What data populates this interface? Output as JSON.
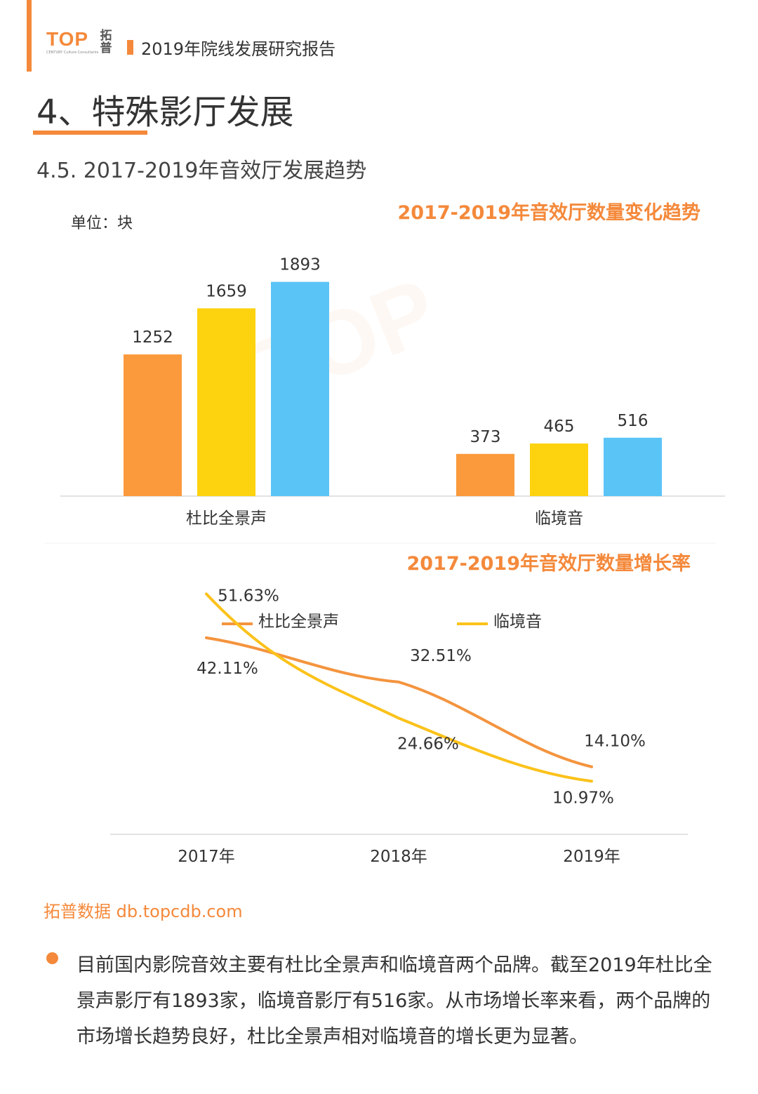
{
  "header": {
    "logo_text": "TOP",
    "logo_cn": "拓普",
    "logo_sub": "CENTURY Culture Consultants",
    "report_title": "2019年院线发展研究报告"
  },
  "page_title": "4、特殊影厅发展",
  "section_subtitle": "4.5. 2017-2019年音效厅发展趋势",
  "colors": {
    "accent": "#f4893b",
    "y2017": "#fb9a3c",
    "y2018": "#fdd20f",
    "y2019": "#5bc4f7",
    "line_dolby": "#f4943e",
    "line_cinity": "#fcc21b"
  },
  "chart_data": [
    {
      "type": "bar",
      "title": "2017-2019年音效厅数量变化趋势",
      "unit_label": "单位：块",
      "categories": [
        "杜比全景声",
        "临境音"
      ],
      "series": [
        {
          "values": [
            1252,
            373
          ]
        },
        {
          "values": [
            1659,
            465
          ]
        },
        {
          "values": [
            1893,
            516
          ]
        }
      ],
      "ylim": [
        0,
        2100
      ],
      "grid": false
    },
    {
      "type": "line",
      "title": "2017-2019年音效厅数量增长率",
      "x": [
        "2017年",
        "2018年",
        "2019年"
      ],
      "series": [
        {
          "name": "杜比全景声",
          "values": [
            42.11,
            32.51,
            14.1
          ],
          "labels": [
            "42.11%",
            "32.51%",
            "14.10%"
          ]
        },
        {
          "name": "临境音",
          "values": [
            51.63,
            24.66,
            10.97
          ],
          "labels": [
            "51.63%",
            "24.66%",
            "10.97%"
          ]
        }
      ],
      "legend": "top",
      "grid": false
    }
  ],
  "footer": {
    "source": "拓普数据  db.topcdb.com",
    "paragraph": "目前国内影院音效主要有杜比全景声和临境音两个品牌。截至2019年杜比全景声影厅有1893家，临境音影厅有516家。从市场增长率来看，两个品牌的市场增长趋势良好，杜比全景声相对临境音的增长更为显著。"
  }
}
